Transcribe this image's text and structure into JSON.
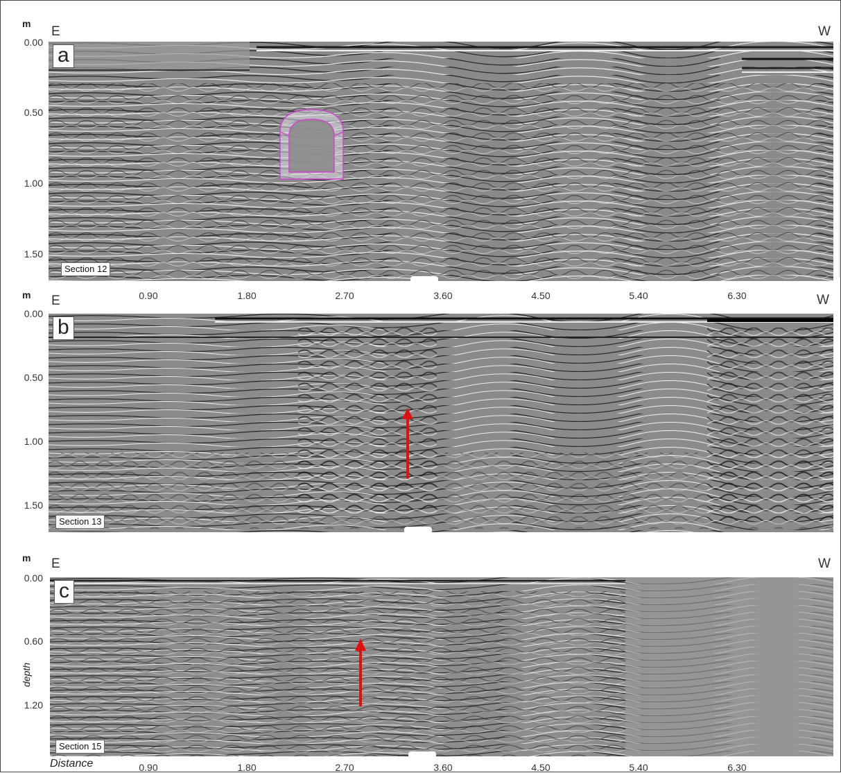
{
  "unit": "m",
  "east": "E",
  "west": "W",
  "panels": [
    {
      "label": "a",
      "section": "Section 12",
      "depth_ticks": [
        "0.00",
        "0.50",
        "1.00",
        "1.50"
      ]
    },
    {
      "label": "b",
      "section": "Section 13",
      "depth_ticks": [
        "0.00",
        "0.50",
        "1.00",
        "1.50"
      ]
    },
    {
      "label": "c",
      "section": "Section 15",
      "depth_ticks": [
        "0.00",
        "0.60",
        "1.20"
      ]
    }
  ],
  "distance_ticks": [
    "0.90",
    "1.80",
    "2.70",
    "3.60",
    "4.50",
    "5.40",
    "6.30"
  ],
  "depth_axis_label": "depth",
  "distance_axis_label": "Distance",
  "colors": {
    "tunnel_outline": "#cc44cc",
    "arrow": "#e01010",
    "radargram_base": "#8c8c8c"
  }
}
